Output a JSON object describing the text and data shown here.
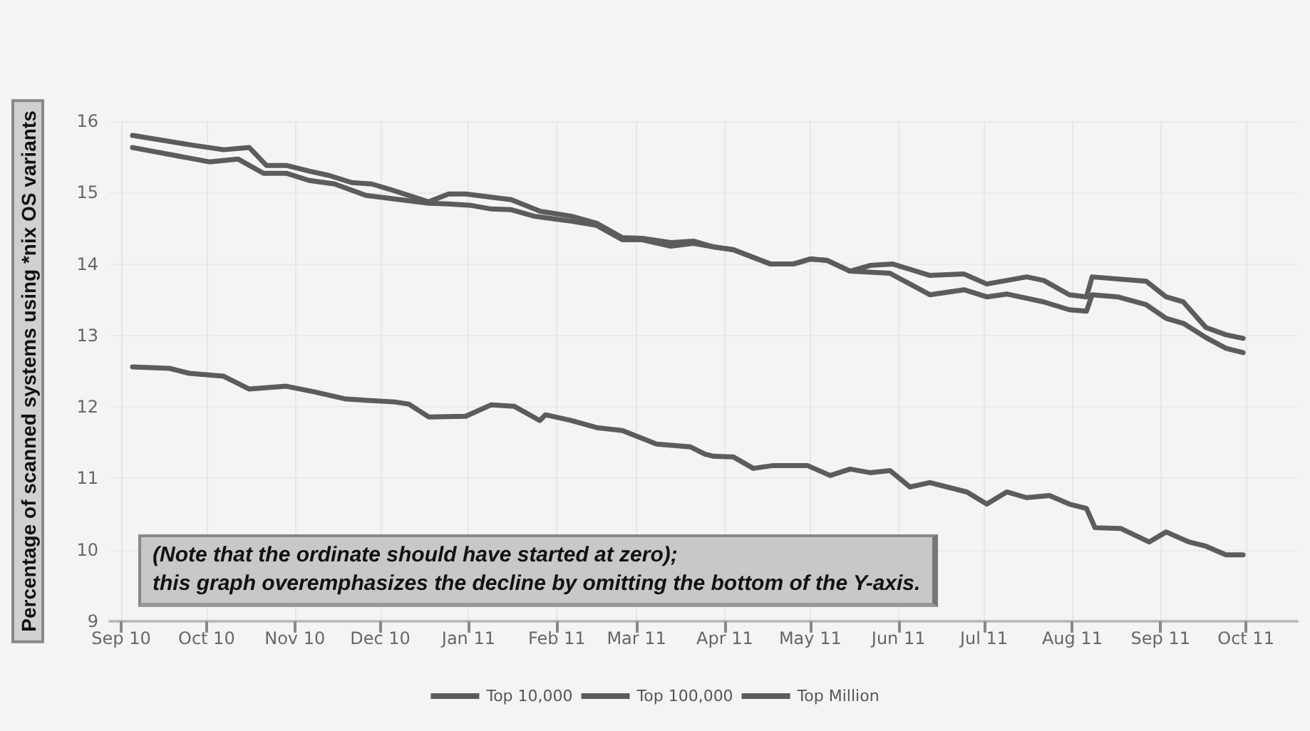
{
  "chart_data": {
    "type": "line",
    "ylabel": "Percentage of scanned systems using *nix OS variants",
    "annotations": [
      "(Note that the ordinate should have started at zero);",
      "this graph overemphasizes the decline by omitting the bottom of the Y-axis."
    ],
    "series": [
      {
        "name": "Top 10,000",
        "color": "#5c5c5c",
        "x": [
          "2010-09-05",
          "2010-09-25",
          "2010-10-07",
          "2010-10-16",
          "2010-10-22",
          "2010-10-29",
          "2010-11-06",
          "2010-11-13",
          "2010-11-21",
          "2010-11-28",
          "2010-12-04",
          "2010-12-18",
          "2010-12-25",
          "2010-12-31",
          "2011-01-16",
          "2011-01-26",
          "2011-02-06",
          "2011-02-15",
          "2011-02-24",
          "2011-03-03",
          "2011-03-13",
          "2011-03-21",
          "2011-03-28",
          "2011-04-04",
          "2011-04-17",
          "2011-04-25",
          "2011-05-01",
          "2011-05-07",
          "2011-05-15",
          "2011-05-22",
          "2011-05-30",
          "2011-06-12",
          "2011-06-24",
          "2011-07-02",
          "2011-07-16",
          "2011-07-22",
          "2011-07-31",
          "2011-08-06",
          "2011-08-08",
          "2011-08-27",
          "2011-09-03",
          "2011-09-09",
          "2011-09-17",
          "2011-09-24",
          "2011-09-30"
        ],
        "values": [
          15.8,
          15.67,
          15.6,
          15.63,
          15.38,
          15.38,
          15.3,
          15.24,
          15.14,
          15.12,
          15.05,
          14.87,
          14.98,
          14.98,
          14.9,
          14.74,
          14.67,
          14.57,
          14.37,
          14.36,
          14.3,
          14.32,
          14.24,
          14.2,
          14.0,
          14.0,
          14.07,
          14.05,
          13.9,
          13.98,
          14.0,
          13.84,
          13.86,
          13.72,
          13.82,
          13.77,
          13.57,
          13.54,
          13.82,
          13.76,
          13.54,
          13.47,
          13.11,
          13.01,
          12.96
        ]
      },
      {
        "name": "Top 100,000",
        "color": "#5c5c5c",
        "x": [
          "2010-09-05",
          "2010-10-02",
          "2010-10-12",
          "2010-10-21",
          "2010-10-29",
          "2010-11-06",
          "2010-11-15",
          "2010-11-26",
          "2010-12-08",
          "2010-12-18",
          "2010-12-25",
          "2011-01-02",
          "2011-01-09",
          "2011-01-16",
          "2011-01-24",
          "2011-02-06",
          "2011-02-15",
          "2011-02-24",
          "2011-03-03",
          "2011-03-13",
          "2011-03-21",
          "2011-03-28",
          "2011-04-04",
          "2011-04-17",
          "2011-04-25",
          "2011-05-01",
          "2011-05-07",
          "2011-05-15",
          "2011-05-29",
          "2011-06-12",
          "2011-06-24",
          "2011-07-02",
          "2011-07-09",
          "2011-07-22",
          "2011-07-31",
          "2011-08-06",
          "2011-08-08",
          "2011-08-17",
          "2011-08-27",
          "2011-09-03",
          "2011-09-09",
          "2011-09-17",
          "2011-09-24",
          "2011-09-30"
        ],
        "values": [
          15.63,
          15.43,
          15.47,
          15.27,
          15.27,
          15.17,
          15.12,
          14.96,
          14.9,
          14.85,
          14.84,
          14.82,
          14.77,
          14.76,
          14.67,
          14.6,
          14.54,
          14.34,
          14.34,
          14.25,
          14.29,
          14.24,
          14.2,
          14.0,
          14.0,
          14.07,
          14.05,
          13.9,
          13.87,
          13.57,
          13.64,
          13.54,
          13.58,
          13.47,
          13.36,
          13.34,
          13.57,
          13.54,
          13.43,
          13.24,
          13.17,
          12.97,
          12.82,
          12.76
        ]
      },
      {
        "name": "Top Million",
        "color": "#5c5c5c",
        "x": [
          "2010-09-05",
          "2010-09-18",
          "2010-09-25",
          "2010-10-07",
          "2010-10-16",
          "2010-10-29",
          "2010-11-08",
          "2010-11-19",
          "2010-12-06",
          "2010-12-11",
          "2010-12-18",
          "2010-12-31",
          "2011-01-09",
          "2011-01-17",
          "2011-01-26",
          "2011-01-28",
          "2011-02-06",
          "2011-02-15",
          "2011-02-24",
          "2011-03-08",
          "2011-03-20",
          "2011-03-25",
          "2011-03-28",
          "2011-04-04",
          "2011-04-11",
          "2011-04-18",
          "2011-04-30",
          "2011-05-08",
          "2011-05-15",
          "2011-05-22",
          "2011-05-29",
          "2011-06-05",
          "2011-06-12",
          "2011-06-25",
          "2011-07-02",
          "2011-07-09",
          "2011-07-16",
          "2011-07-24",
          "2011-07-31",
          "2011-08-06",
          "2011-08-09",
          "2011-08-18",
          "2011-08-28",
          "2011-09-03",
          "2011-09-11",
          "2011-09-17",
          "2011-09-24",
          "2011-09-30"
        ],
        "values": [
          12.56,
          12.54,
          12.47,
          12.43,
          12.25,
          12.29,
          12.21,
          12.11,
          12.07,
          12.04,
          11.86,
          11.87,
          12.03,
          12.01,
          11.81,
          11.89,
          11.81,
          11.71,
          11.67,
          11.48,
          11.44,
          11.34,
          11.31,
          11.3,
          11.14,
          11.18,
          11.18,
          11.04,
          11.13,
          11.08,
          11.11,
          10.88,
          10.94,
          10.81,
          10.64,
          10.81,
          10.73,
          10.76,
          10.64,
          10.58,
          10.31,
          10.3,
          10.11,
          10.25,
          10.11,
          10.05,
          9.93,
          9.93
        ]
      }
    ],
    "xlim": [
      "2010-08-28",
      "2011-10-19"
    ],
    "xticks": [
      {
        "value": "2010-09-01",
        "label": "Sep 10"
      },
      {
        "value": "2010-10-01",
        "label": "Oct 10"
      },
      {
        "value": "2010-11-01",
        "label": "Nov 10"
      },
      {
        "value": "2010-12-01",
        "label": "Dec 10"
      },
      {
        "value": "2011-01-01",
        "label": "Jan 11"
      },
      {
        "value": "2011-02-01",
        "label": "Feb 11"
      },
      {
        "value": "2011-03-01",
        "label": "Mar 11"
      },
      {
        "value": "2011-04-01",
        "label": "Apr 11"
      },
      {
        "value": "2011-05-01",
        "label": "May 11"
      },
      {
        "value": "2011-06-01",
        "label": "Jun 11"
      },
      {
        "value": "2011-07-01",
        "label": "Jul 11"
      },
      {
        "value": "2011-08-01",
        "label": "Aug 11"
      },
      {
        "value": "2011-09-01",
        "label": "Sep 11"
      },
      {
        "value": "2011-10-01",
        "label": "Oct 11"
      }
    ],
    "ylim": [
      9,
      16
    ],
    "yticks": [
      9,
      10,
      11,
      12,
      13,
      14,
      15,
      16
    ],
    "grid": true,
    "legend": "bottom",
    "marker": "none",
    "line_style": "solid"
  }
}
